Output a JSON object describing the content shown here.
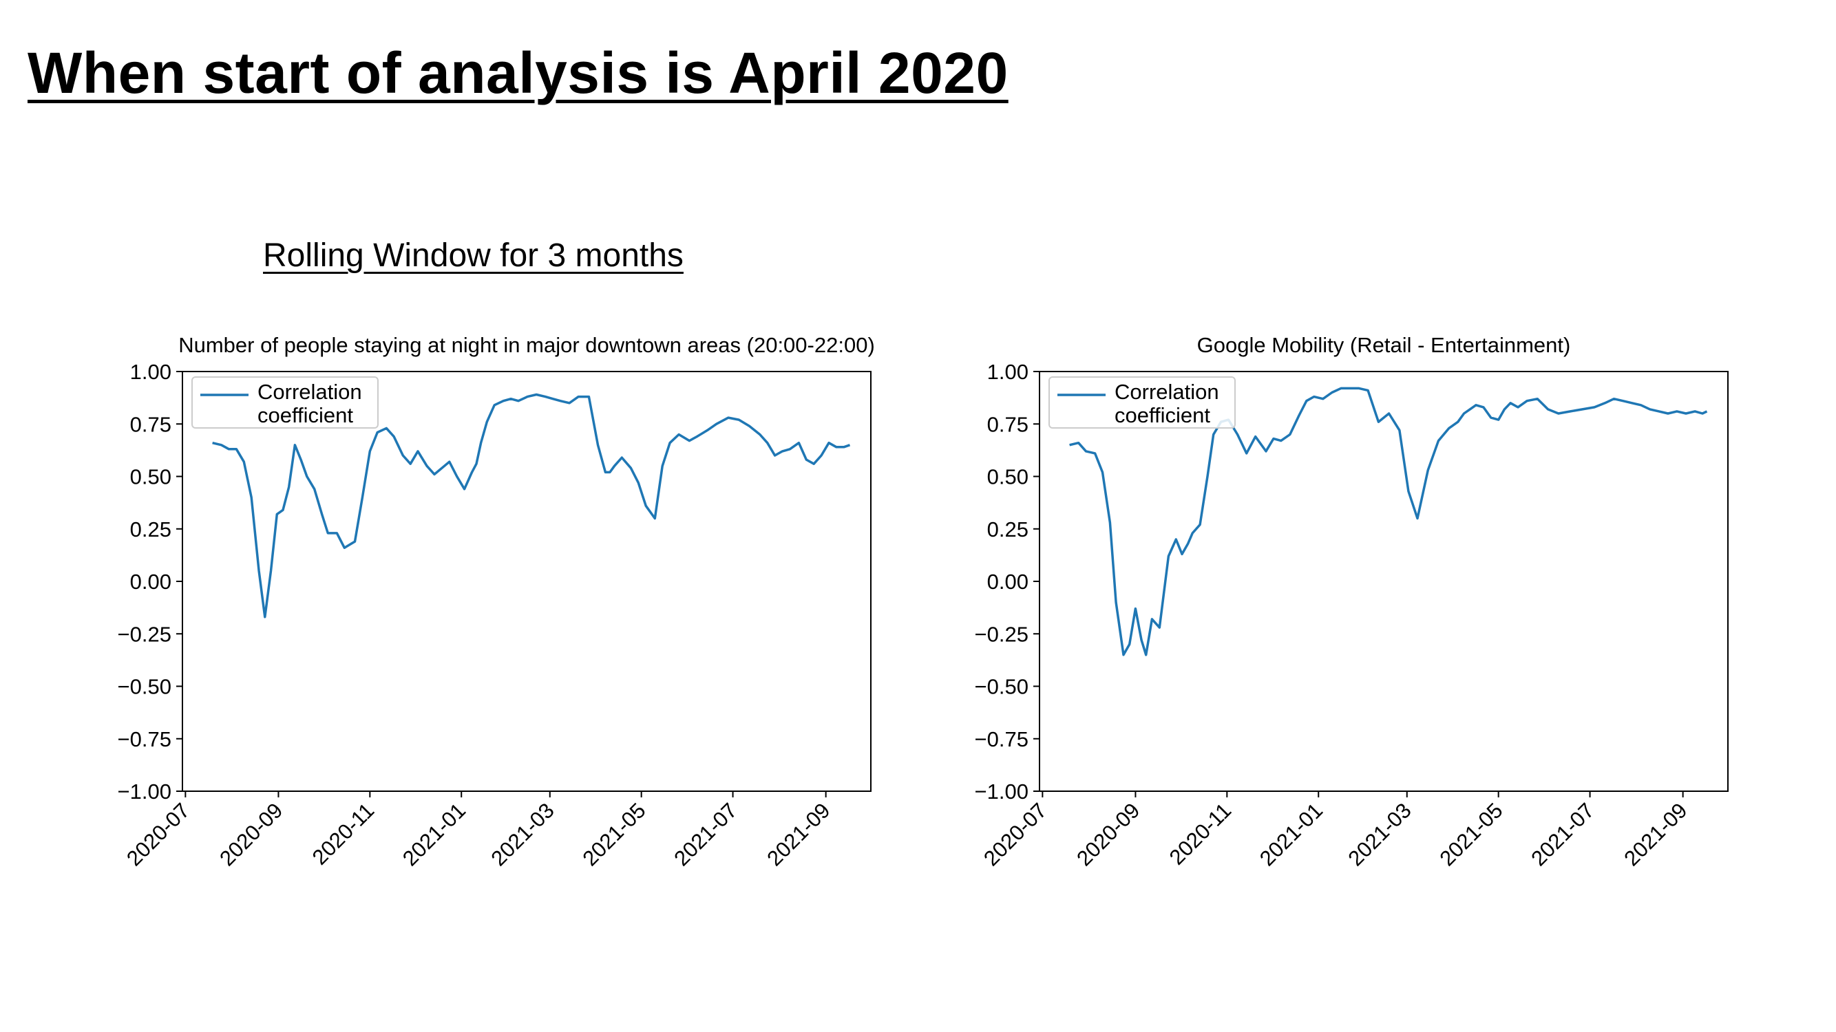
{
  "slide": {
    "title": "When start of analysis is April 2020",
    "subtitle": "Rolling Window for 3 months"
  },
  "colors": {
    "series": "#1f77b4",
    "axis": "#000000",
    "legend_border": "#cccccc"
  },
  "chart_data": [
    {
      "type": "line",
      "title": "Number of people staying at night in major downtown areas (20:00-22:00)",
      "xlabel": "",
      "ylabel": "",
      "ylim": [
        -1.0,
        1.0
      ],
      "xlim": [
        "2020-06-29",
        "2021-10-01"
      ],
      "yticks": [
        1.0,
        0.75,
        0.5,
        0.25,
        0.0,
        -0.25,
        -0.5,
        -0.75,
        -1.0
      ],
      "ytick_labels": [
        "1.00",
        "0.75",
        "0.50",
        "0.25",
        "0.00",
        "−0.25",
        "−0.50",
        "−0.75",
        "−1.00"
      ],
      "xticks": [
        "2020-07-01",
        "2020-09-01",
        "2020-11-01",
        "2021-01-01",
        "2021-03-01",
        "2021-05-01",
        "2021-07-01",
        "2021-09-01"
      ],
      "xtick_labels": [
        "2020-07",
        "2020-09",
        "2020-11",
        "2021-01",
        "2021-03",
        "2021-05",
        "2021-07",
        "2021-09"
      ],
      "grid": false,
      "legend": {
        "placement": "upper-left",
        "lines": [
          "Correlation",
          "coefficient"
        ]
      },
      "series": [
        {
          "x": [
            "2020-07-19",
            "2020-07-25",
            "2020-07-30",
            "2020-08-04",
            "2020-08-09",
            "2020-08-14",
            "2020-08-19",
            "2020-08-23",
            "2020-08-27",
            "2020-08-31",
            "2020-09-04",
            "2020-09-08",
            "2020-09-12",
            "2020-09-16",
            "2020-09-20",
            "2020-09-25",
            "2020-09-30",
            "2020-10-04",
            "2020-10-10",
            "2020-10-15",
            "2020-10-22",
            "2020-10-27",
            "2020-11-01",
            "2020-11-06",
            "2020-11-12",
            "2020-11-17",
            "2020-11-23",
            "2020-11-28",
            "2020-12-03",
            "2020-12-09",
            "2020-12-14",
            "2020-12-19",
            "2020-12-24",
            "2020-12-29",
            "2021-01-03",
            "2021-01-08",
            "2021-01-11",
            "2021-01-14",
            "2021-01-18",
            "2021-01-23",
            "2021-01-29",
            "2021-02-03",
            "2021-02-08",
            "2021-02-14",
            "2021-02-20",
            "2021-02-26",
            "2021-03-03",
            "2021-03-08",
            "2021-03-14",
            "2021-03-20",
            "2021-03-27",
            "2021-04-02",
            "2021-04-07",
            "2021-04-10",
            "2021-04-13",
            "2021-04-18",
            "2021-04-24",
            "2021-04-29",
            "2021-05-04",
            "2021-05-10",
            "2021-05-15",
            "2021-05-20",
            "2021-05-26",
            "2021-06-02",
            "2021-06-07",
            "2021-06-14",
            "2021-06-20",
            "2021-06-28",
            "2021-07-05",
            "2021-07-12",
            "2021-07-19",
            "2021-07-24",
            "2021-07-29",
            "2021-08-03",
            "2021-08-08",
            "2021-08-14",
            "2021-08-19",
            "2021-08-24",
            "2021-08-29",
            "2021-09-03",
            "2021-09-08",
            "2021-09-13",
            "2021-09-17"
          ],
          "y": [
            0.66,
            0.65,
            0.63,
            0.63,
            0.57,
            0.4,
            0.05,
            -0.17,
            0.05,
            0.32,
            0.34,
            0.45,
            0.65,
            0.58,
            0.5,
            0.44,
            0.32,
            0.23,
            0.23,
            0.16,
            0.19,
            0.4,
            0.62,
            0.71,
            0.73,
            0.69,
            0.6,
            0.56,
            0.62,
            0.55,
            0.51,
            0.54,
            0.57,
            0.5,
            0.44,
            0.52,
            0.56,
            0.66,
            0.76,
            0.84,
            0.86,
            0.87,
            0.86,
            0.88,
            0.89,
            0.88,
            0.87,
            0.86,
            0.85,
            0.88,
            0.88,
            0.65,
            0.52,
            0.52,
            0.55,
            0.59,
            0.54,
            0.47,
            0.36,
            0.3,
            0.55,
            0.66,
            0.7,
            0.67,
            0.69,
            0.72,
            0.75,
            0.78,
            0.77,
            0.74,
            0.7,
            0.66,
            0.6,
            0.62,
            0.63,
            0.66,
            0.58,
            0.56,
            0.6,
            0.66,
            0.64,
            0.64,
            0.65
          ]
        }
      ]
    },
    {
      "type": "line",
      "title": "Google Mobility (Retail - Entertainment)",
      "xlabel": "",
      "ylabel": "",
      "ylim": [
        -1.0,
        1.0
      ],
      "xlim": [
        "2020-06-29",
        "2021-10-01"
      ],
      "yticks": [
        1.0,
        0.75,
        0.5,
        0.25,
        0.0,
        -0.25,
        -0.5,
        -0.75,
        -1.0
      ],
      "ytick_labels": [
        "1.00",
        "0.75",
        "0.50",
        "0.25",
        "0.00",
        "−0.25",
        "−0.50",
        "−0.75",
        "−1.00"
      ],
      "xticks": [
        "2020-07-01",
        "2020-09-01",
        "2020-11-01",
        "2021-01-01",
        "2021-03-01",
        "2021-05-01",
        "2021-07-01",
        "2021-09-01"
      ],
      "xtick_labels": [
        "2020-07",
        "2020-09",
        "2020-11",
        "2021-01",
        "2021-03",
        "2021-05",
        "2021-07",
        "2021-09"
      ],
      "grid": false,
      "legend": {
        "placement": "upper-left",
        "lines": [
          "Correlation",
          "coefficient"
        ]
      },
      "series": [
        {
          "x": [
            "2020-07-19",
            "2020-07-25",
            "2020-07-30",
            "2020-08-05",
            "2020-08-10",
            "2020-08-15",
            "2020-08-19",
            "2020-08-24",
            "2020-08-28",
            "2020-09-01",
            "2020-09-05",
            "2020-09-08",
            "2020-09-12",
            "2020-09-17",
            "2020-09-23",
            "2020-09-28",
            "2020-10-02",
            "2020-10-06",
            "2020-10-09",
            "2020-10-14",
            "2020-10-19",
            "2020-10-23",
            "2020-10-28",
            "2020-11-02",
            "2020-11-08",
            "2020-11-14",
            "2020-11-20",
            "2020-11-27",
            "2020-12-02",
            "2020-12-07",
            "2020-12-13",
            "2020-12-19",
            "2020-12-24",
            "2020-12-29",
            "2021-01-04",
            "2021-01-10",
            "2021-01-16",
            "2021-01-22",
            "2021-01-28",
            "2021-02-03",
            "2021-02-10",
            "2021-02-17",
            "2021-02-24",
            "2021-03-02",
            "2021-03-08",
            "2021-03-15",
            "2021-03-22",
            "2021-03-29",
            "2021-04-04",
            "2021-04-08",
            "2021-04-12",
            "2021-04-16",
            "2021-04-21",
            "2021-04-26",
            "2021-05-01",
            "2021-05-05",
            "2021-05-09",
            "2021-05-14",
            "2021-05-20",
            "2021-05-27",
            "2021-06-03",
            "2021-06-10",
            "2021-06-18",
            "2021-06-26",
            "2021-07-04",
            "2021-07-11",
            "2021-07-17",
            "2021-07-23",
            "2021-07-29",
            "2021-08-04",
            "2021-08-10",
            "2021-08-16",
            "2021-08-22",
            "2021-08-28",
            "2021-09-03",
            "2021-09-09",
            "2021-09-14",
            "2021-09-17"
          ],
          "y": [
            0.65,
            0.66,
            0.62,
            0.61,
            0.52,
            0.28,
            -0.1,
            -0.35,
            -0.3,
            -0.13,
            -0.28,
            -0.35,
            -0.18,
            -0.22,
            0.12,
            0.2,
            0.13,
            0.18,
            0.23,
            0.27,
            0.5,
            0.7,
            0.76,
            0.77,
            0.7,
            0.61,
            0.69,
            0.62,
            0.68,
            0.67,
            0.7,
            0.79,
            0.86,
            0.88,
            0.87,
            0.9,
            0.92,
            0.92,
            0.92,
            0.91,
            0.76,
            0.8,
            0.72,
            0.43,
            0.3,
            0.53,
            0.67,
            0.73,
            0.76,
            0.8,
            0.82,
            0.84,
            0.83,
            0.78,
            0.77,
            0.82,
            0.85,
            0.83,
            0.86,
            0.87,
            0.82,
            0.8,
            0.81,
            0.82,
            0.83,
            0.85,
            0.87,
            0.86,
            0.85,
            0.84,
            0.82,
            0.81,
            0.8,
            0.81,
            0.8,
            0.81,
            0.8,
            0.81
          ]
        }
      ]
    }
  ]
}
